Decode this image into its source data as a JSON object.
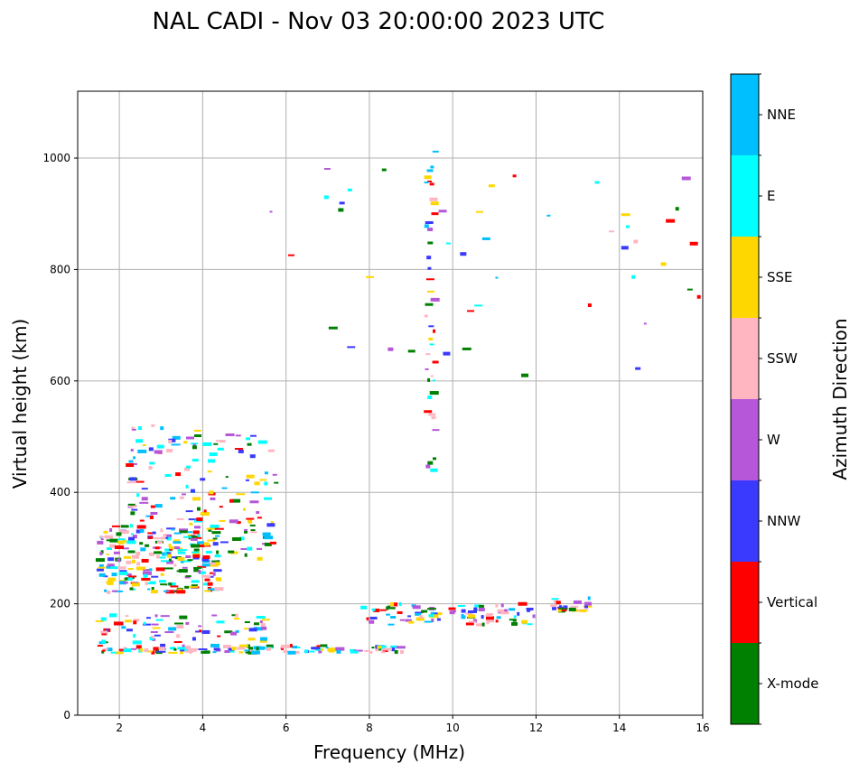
{
  "chart_data": {
    "type": "scatter",
    "title": "NAL CADI - Nov 03 20:00:00 2023 UTC",
    "xlabel": "Frequency (MHz)",
    "ylabel": "Virtual height (km)",
    "xlim": [
      1,
      16
    ],
    "ylim": [
      0,
      1120
    ],
    "xticks": [
      "2",
      "4",
      "6",
      "8",
      "10",
      "12",
      "14",
      "16"
    ],
    "yticks": [
      "0",
      "200",
      "400",
      "600",
      "800",
      "1000"
    ],
    "grid": true,
    "colorbar": {
      "label": "Azimuth Direction",
      "categories": [
        {
          "name": "X-mode",
          "color": "#008000"
        },
        {
          "name": "Vertical",
          "color": "#ff0000"
        },
        {
          "name": "NNW",
          "color": "#3a3aff"
        },
        {
          "name": "W",
          "color": "#b557d8"
        },
        {
          "name": "SSW",
          "color": "#ffb6c1"
        },
        {
          "name": "SSE",
          "color": "#ffd700"
        },
        {
          "name": "E",
          "color": "#00ffff"
        },
        {
          "name": "NNE",
          "color": "#00bfff"
        }
      ]
    },
    "clusters": [
      {
        "name": "E-region echoes",
        "x_range": [
          1.5,
          8.8
        ],
        "y_range": [
          112,
          125
        ],
        "count": 120
      },
      {
        "name": "E-region upper trace",
        "x_range": [
          1.5,
          5.8
        ],
        "y_range": [
          130,
          180
        ],
        "count": 70
      },
      {
        "name": "F-region low-frequency trace",
        "x_range": [
          1.5,
          4.4
        ],
        "y_range": [
          220,
          340
        ],
        "count": 220
      },
      {
        "name": "F-region scattered",
        "x_range": [
          2.2,
          5.8
        ],
        "y_range": [
          280,
          520
        ],
        "count": 170
      },
      {
        "name": "Mid-frequency trace",
        "x_range": [
          7.8,
          12.0
        ],
        "y_range": [
          162,
          200
        ],
        "count": 90
      },
      {
        "name": "Frequency column near 9.5 MHz",
        "x_range": [
          9.35,
          9.6
        ],
        "y_range": [
          430,
          1015
        ],
        "count": 40
      },
      {
        "name": "High-frequency echoes",
        "x_range": [
          12.2,
          13.3
        ],
        "y_range": [
          185,
          210
        ],
        "count": 25
      },
      {
        "name": "Sparse high echoes",
        "x_range": [
          5.5,
          16.0
        ],
        "y_range": [
          600,
          1000
        ],
        "count": 45
      }
    ]
  }
}
